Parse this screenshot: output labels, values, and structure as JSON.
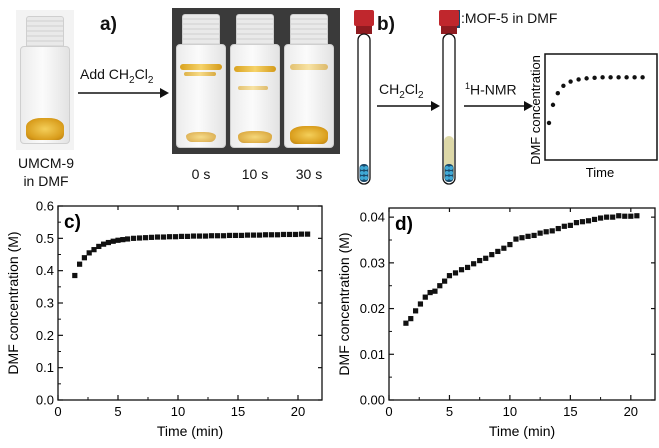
{
  "panel_a": {
    "label": "a)",
    "arrow_label_prefix": "Add CH",
    "arrow_label_sub1": "2",
    "arrow_label_mid": "Cl",
    "arrow_label_sub2": "2",
    "sample_line1": "UMCM-9",
    "sample_line2": "in DMF",
    "times": [
      "0 s",
      "10 s",
      "30 s"
    ],
    "colors": {
      "crystal": "#e2a726",
      "photo_bg": "#3a3a3a"
    }
  },
  "panel_b": {
    "label": "b)",
    "legend_text": ":MOF-5 in DMF",
    "step1_prefix": "CH",
    "step1_sub1": "2",
    "step1_mid": "Cl",
    "step1_sub2": "2",
    "step2_sup": "1",
    "step2_text": "H-NMR",
    "inset_ylabel": "DMF concentration",
    "inset_xlabel": "Time",
    "colors": {
      "cap": "#c0272d",
      "mof": "#3fa9d6",
      "liquid": "#ddd8a8"
    }
  },
  "chart_data": [
    {
      "type": "scatter",
      "panel": "c)",
      "xlabel": "Time (min)",
      "ylabel": "DMF concentration (M)",
      "xlim": [
        0,
        22
      ],
      "ylim": [
        0,
        0.6
      ],
      "xticks": [
        0,
        5,
        10,
        15,
        20
      ],
      "yticks": [
        0.0,
        0.1,
        0.2,
        0.3,
        0.4,
        0.5,
        0.6
      ],
      "ytick_labels": [
        "0.0",
        "0.1",
        "0.2",
        "0.3",
        "0.4",
        "0.5",
        "0.6"
      ],
      "marker": "square",
      "points": [
        [
          1.4,
          0.385
        ],
        [
          1.8,
          0.42
        ],
        [
          2.2,
          0.44
        ],
        [
          2.6,
          0.455
        ],
        [
          3.0,
          0.465
        ],
        [
          3.4,
          0.475
        ],
        [
          3.8,
          0.482
        ],
        [
          4.2,
          0.487
        ],
        [
          4.6,
          0.491
        ],
        [
          5.0,
          0.494
        ],
        [
          5.4,
          0.496
        ],
        [
          5.8,
          0.498
        ],
        [
          6.3,
          0.5
        ],
        [
          6.8,
          0.501
        ],
        [
          7.3,
          0.502
        ],
        [
          7.8,
          0.503
        ],
        [
          8.3,
          0.504
        ],
        [
          8.8,
          0.504
        ],
        [
          9.3,
          0.505
        ],
        [
          9.8,
          0.505
        ],
        [
          10.3,
          0.506
        ],
        [
          10.8,
          0.506
        ],
        [
          11.3,
          0.507
        ],
        [
          11.8,
          0.507
        ],
        [
          12.3,
          0.507
        ],
        [
          12.8,
          0.508
        ],
        [
          13.3,
          0.508
        ],
        [
          13.8,
          0.508
        ],
        [
          14.3,
          0.509
        ],
        [
          14.8,
          0.509
        ],
        [
          15.3,
          0.509
        ],
        [
          15.8,
          0.51
        ],
        [
          16.3,
          0.51
        ],
        [
          16.8,
          0.51
        ],
        [
          17.3,
          0.511
        ],
        [
          17.8,
          0.511
        ],
        [
          18.3,
          0.511
        ],
        [
          18.8,
          0.512
        ],
        [
          19.3,
          0.512
        ],
        [
          19.8,
          0.512
        ],
        [
          20.3,
          0.513
        ],
        [
          20.8,
          0.513
        ]
      ]
    },
    {
      "type": "scatter",
      "panel": "d)",
      "xlabel": "Time (min)",
      "ylabel": "DMF concentration (M)",
      "xlim": [
        0,
        22
      ],
      "ylim": [
        0,
        0.042
      ],
      "xticks": [
        0,
        5,
        10,
        15,
        20
      ],
      "yticks": [
        0.0,
        0.01,
        0.02,
        0.03,
        0.04
      ],
      "ytick_labels": [
        "0.00",
        "0.01",
        "0.02",
        "0.03",
        "0.04"
      ],
      "marker": "square",
      "points": [
        [
          1.4,
          0.0168
        ],
        [
          1.8,
          0.0178
        ],
        [
          2.2,
          0.0195
        ],
        [
          2.6,
          0.021
        ],
        [
          3.0,
          0.0225
        ],
        [
          3.4,
          0.0235
        ],
        [
          3.8,
          0.0238
        ],
        [
          4.2,
          0.025
        ],
        [
          4.6,
          0.026
        ],
        [
          5.0,
          0.0272
        ],
        [
          5.5,
          0.0278
        ],
        [
          6.0,
          0.0285
        ],
        [
          6.5,
          0.029
        ],
        [
          7.0,
          0.0298
        ],
        [
          7.5,
          0.0305
        ],
        [
          8.0,
          0.031
        ],
        [
          8.5,
          0.0318
        ],
        [
          9.0,
          0.0325
        ],
        [
          9.5,
          0.0332
        ],
        [
          10.0,
          0.034
        ],
        [
          10.5,
          0.0352
        ],
        [
          11.0,
          0.0355
        ],
        [
          11.5,
          0.0358
        ],
        [
          12.0,
          0.036
        ],
        [
          12.5,
          0.0365
        ],
        [
          13.0,
          0.0368
        ],
        [
          13.5,
          0.037
        ],
        [
          14.0,
          0.0375
        ],
        [
          14.5,
          0.038
        ],
        [
          15.0,
          0.0382
        ],
        [
          15.5,
          0.0388
        ],
        [
          16.0,
          0.039
        ],
        [
          16.5,
          0.0392
        ],
        [
          17.0,
          0.0395
        ],
        [
          17.5,
          0.0398
        ],
        [
          18.0,
          0.04
        ],
        [
          18.5,
          0.04
        ],
        [
          19.0,
          0.0403
        ],
        [
          19.5,
          0.0402
        ],
        [
          20.0,
          0.0402
        ],
        [
          20.5,
          0.0403
        ]
      ]
    },
    {
      "type": "scatter",
      "panel": "inset",
      "xlabel": "Time",
      "ylabel": "DMF concentration",
      "xlim": [
        0,
        14
      ],
      "ylim": [
        0,
        1
      ],
      "points": [
        [
          0.5,
          0.35
        ],
        [
          1.0,
          0.52
        ],
        [
          1.6,
          0.63
        ],
        [
          2.3,
          0.7
        ],
        [
          3.2,
          0.74
        ],
        [
          4.2,
          0.76
        ],
        [
          5.2,
          0.77
        ],
        [
          6.2,
          0.775
        ],
        [
          7.2,
          0.78
        ],
        [
          8.2,
          0.78
        ],
        [
          9.2,
          0.78
        ],
        [
          10.2,
          0.78
        ],
        [
          11.2,
          0.78
        ],
        [
          12.2,
          0.78
        ]
      ]
    }
  ]
}
